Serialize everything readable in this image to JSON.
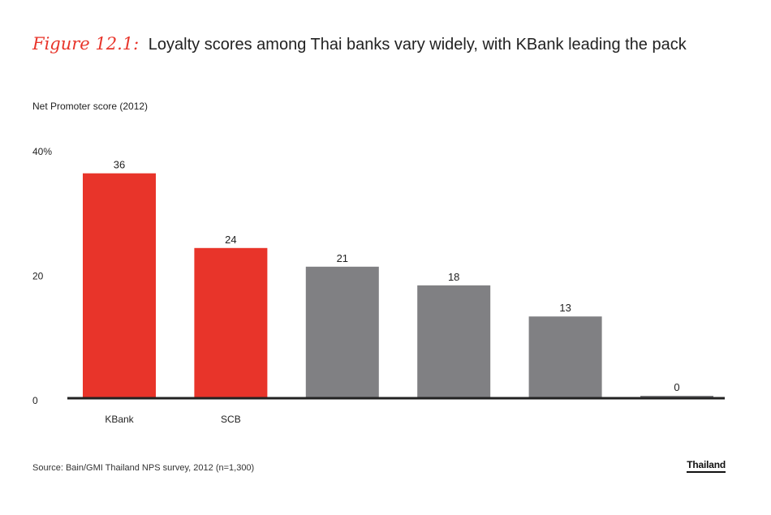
{
  "title": {
    "figure_label": "Figure 12.1:",
    "text": "Loyalty scores among Thai banks vary widely, with KBank leading the pack"
  },
  "source": "Source: Bain/GMI Thailand NPS survey, 2012 (n=1,300)",
  "brand": "Thailand",
  "colors": {
    "highlight": "#e8342a",
    "neutral": "#808083",
    "axis": "#222222"
  },
  "chart_data": {
    "type": "bar",
    "title": "",
    "ylabel": "Net Promoter score (2012)",
    "xlabel": "",
    "ylim": [
      0,
      40
    ],
    "yticks": [
      "0",
      "20",
      "40%"
    ],
    "ytick_values": [
      0,
      20,
      40
    ],
    "grid": false,
    "categories": [
      "KBank",
      "SCB",
      "",
      "",
      "",
      ""
    ],
    "values": [
      36,
      24,
      21,
      18,
      13,
      0
    ],
    "data_labels": [
      "36",
      "24",
      "21",
      "18",
      "13",
      "0"
    ],
    "bar_colors": [
      "highlight",
      "highlight",
      "neutral",
      "neutral",
      "neutral",
      "neutral"
    ]
  }
}
